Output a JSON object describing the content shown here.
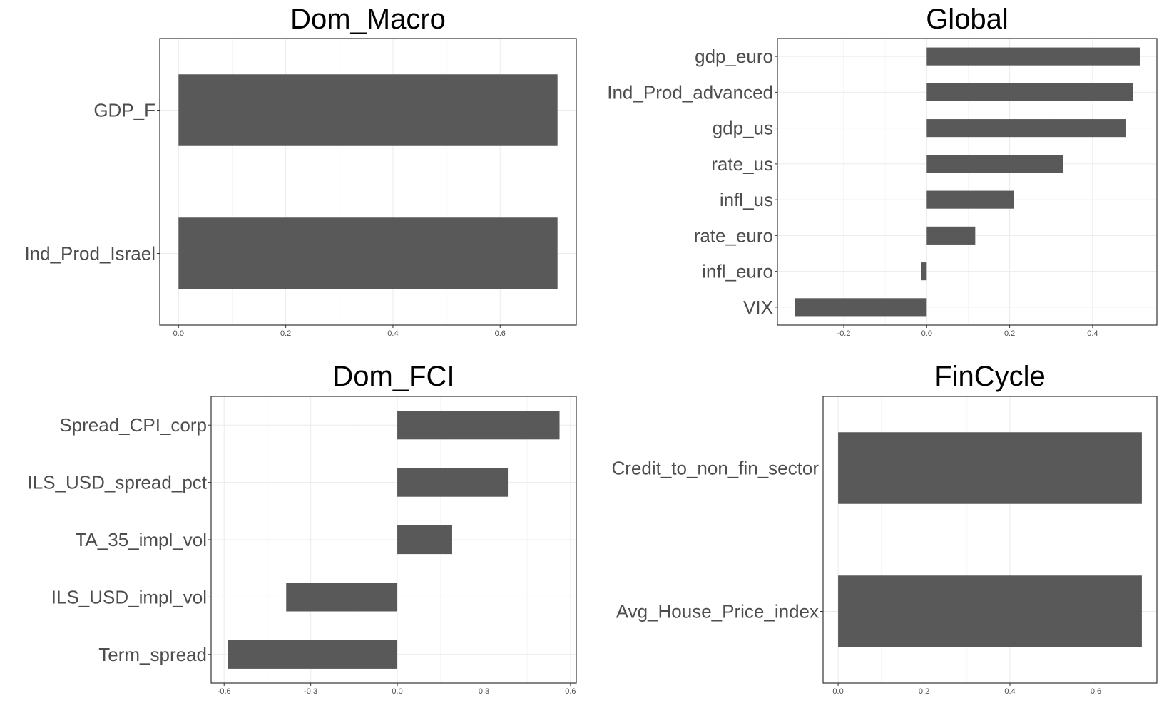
{
  "chart_data": [
    {
      "type": "bar",
      "orientation": "horizontal",
      "title": "Dom_Macro",
      "categories": [
        "GDP_F",
        "Ind_Prod_Israel"
      ],
      "values": [
        0.707,
        0.707
      ],
      "xticks": [
        0.0,
        0.2,
        0.4,
        0.6
      ],
      "xtick_labels": [
        "0.0",
        "0.2",
        "0.4",
        "0.6"
      ],
      "xlim": [
        -0.035,
        0.742
      ],
      "grid": true
    },
    {
      "type": "bar",
      "orientation": "horizontal",
      "title": "Global",
      "categories": [
        "gdp_euro",
        "Ind_Prod_advanced",
        "gdp_us",
        "rate_us",
        "infl_us",
        "rate_euro",
        "infl_euro",
        "VIX"
      ],
      "values": [
        0.514,
        0.497,
        0.481,
        0.329,
        0.21,
        0.117,
        -0.013,
        -0.318
      ],
      "xticks": [
        -0.2,
        0.0,
        0.2,
        0.4
      ],
      "xtick_labels": [
        "-0.2",
        "0.0",
        "0.2",
        "0.4"
      ],
      "xlim": [
        -0.36,
        0.555
      ],
      "grid": true
    },
    {
      "type": "bar",
      "orientation": "horizontal",
      "title": "Dom_FCI",
      "categories": [
        "Spread_CPI_corp",
        "ILS_USD_spread_pct",
        "TA_35_impl_vol",
        "ILS_USD_impl_vol",
        "Term_spread"
      ],
      "values": [
        0.562,
        0.383,
        0.19,
        -0.385,
        -0.588
      ],
      "xticks": [
        -0.6,
        -0.3,
        0.0,
        0.3,
        0.6
      ],
      "xtick_labels": [
        "-0.6",
        "-0.3",
        "0.0",
        "0.3",
        "0.6"
      ],
      "xlim": [
        -0.645,
        0.62
      ],
      "grid": true
    },
    {
      "type": "bar",
      "orientation": "horizontal",
      "title": "FinCycle",
      "categories": [
        "Credit_to_non_fin_sector",
        "Avg_House_Price_index"
      ],
      "values": [
        0.707,
        0.707
      ],
      "xticks": [
        0.0,
        0.2,
        0.4,
        0.6
      ],
      "xtick_labels": [
        "0.0",
        "0.2",
        "0.4",
        "0.6"
      ],
      "xlim": [
        -0.035,
        0.742
      ],
      "grid": true
    }
  ],
  "style": {
    "bar_color": "#595959",
    "grid_color": "#ebebeb",
    "border_color": "#333333",
    "label_color": "#4d4d4d"
  }
}
